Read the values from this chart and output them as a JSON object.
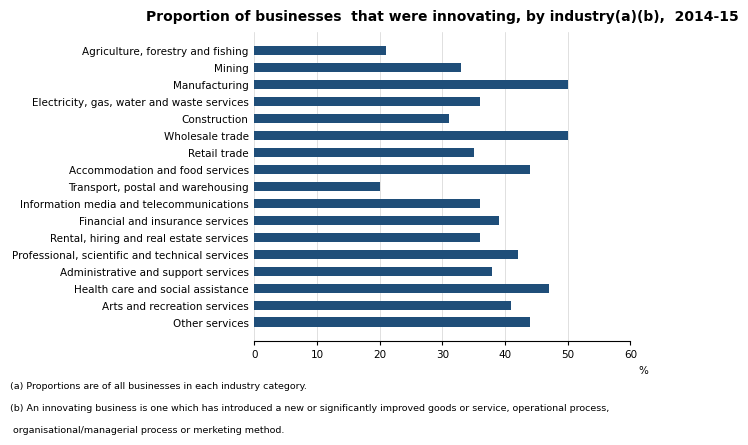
{
  "title": "Proportion of businesses  that were innovating, by industry(a)(b),  2014-15",
  "categories": [
    "Agriculture, forestry and fishing",
    "Mining",
    "Manufacturing",
    "Electricity, gas, water and waste services",
    "Construction",
    "Wholesale trade",
    "Retail trade",
    "Accommodation and food services",
    "Transport, postal and warehousing",
    "Information media and telecommunications",
    "Financial and insurance services",
    "Rental, hiring and real estate services",
    "Professional, scientific and technical services",
    "Administrative and support services",
    "Health care and social assistance",
    "Arts and recreation services",
    "Other services"
  ],
  "values": [
    21,
    33,
    50,
    36,
    31,
    50,
    35,
    44,
    20,
    36,
    39,
    36,
    42,
    38,
    47,
    41,
    44
  ],
  "bar_color": "#1F4E79",
  "xlim": [
    0,
    60
  ],
  "xticks": [
    0,
    10,
    20,
    30,
    40,
    50,
    60
  ],
  "xlabel": "%",
  "title_fontsize": 10,
  "tick_fontsize": 7.5,
  "footnote_line1": "(a) Proportions are of all businesses in each industry category.",
  "footnote_line2": "(b) An innovating business is one which has introduced a new or significantly improved goods or service, operational process,",
  "footnote_line3": " organisational/managerial process or merketing method.",
  "bar_height": 0.55,
  "footnote_fontsize": 6.8
}
